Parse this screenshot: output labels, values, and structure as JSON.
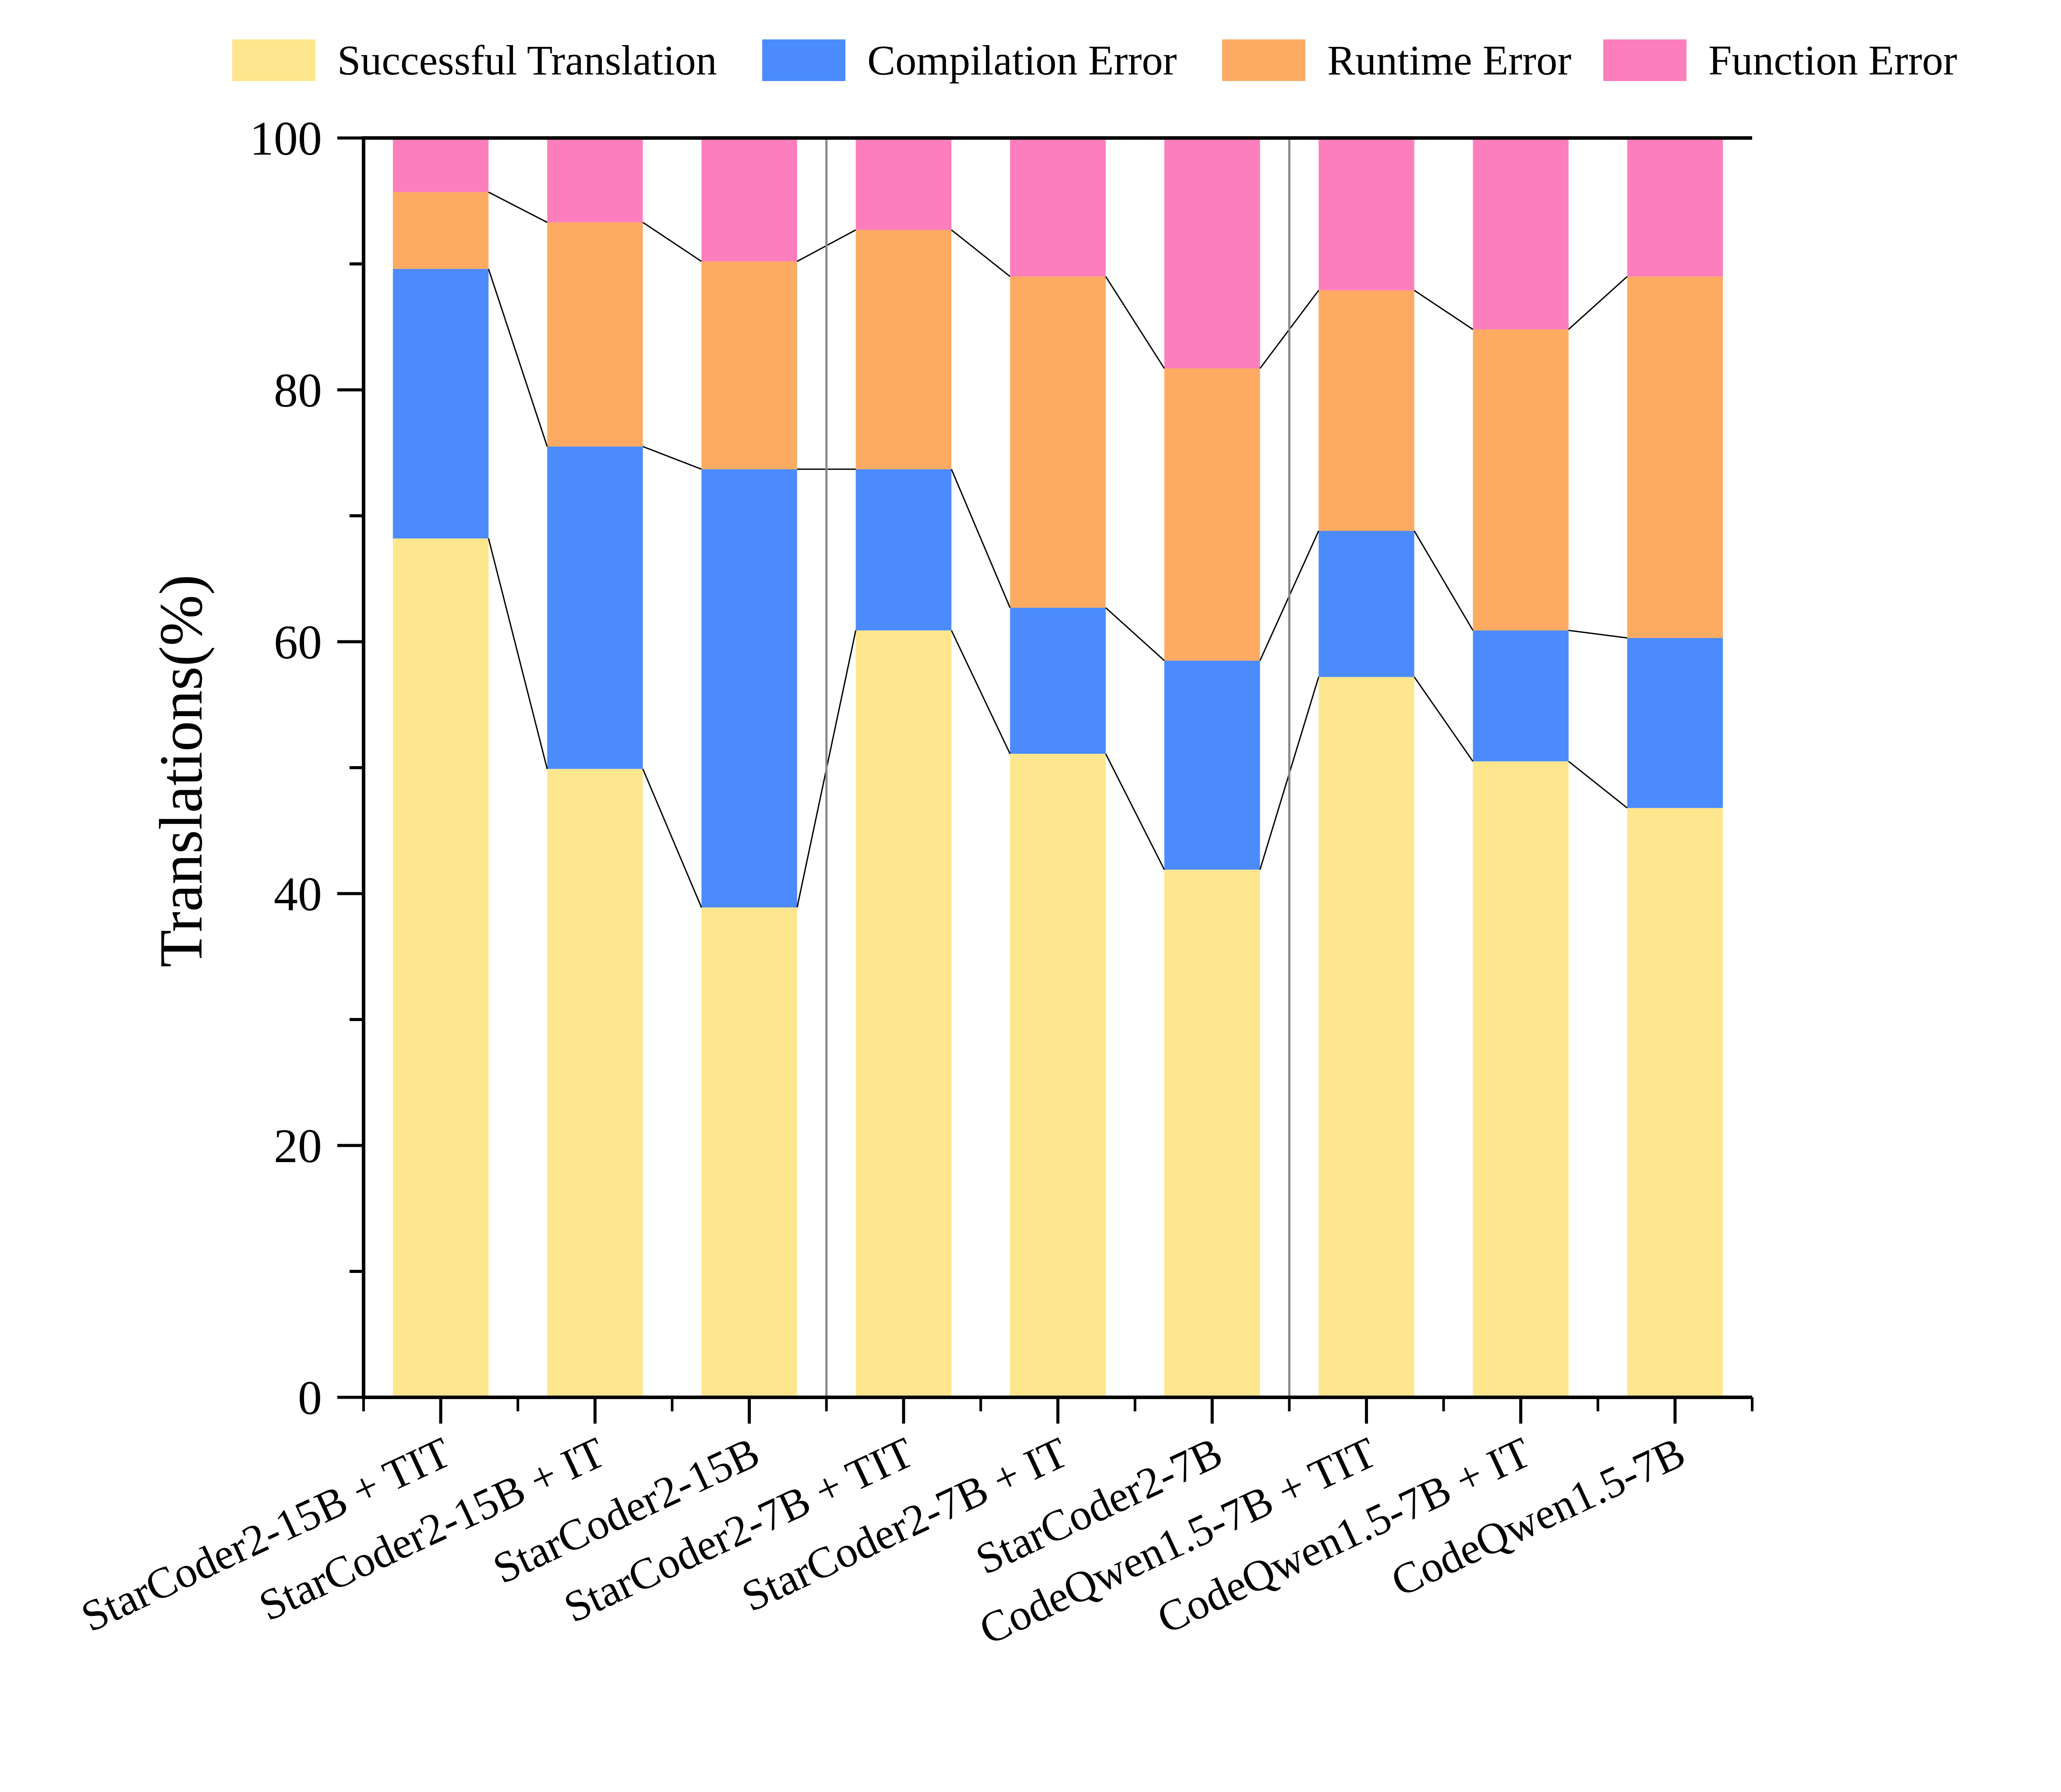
{
  "chart_data": {
    "type": "bar",
    "stacked": true,
    "ylabel": "Translations(%)",
    "xlabel": "",
    "ylim": [
      0,
      100
    ],
    "yticks": [
      "0",
      "20",
      "40",
      "60",
      "80",
      "100"
    ],
    "categories": [
      "StarCoder2-15B + TIT",
      "StarCoder2-15B + IT",
      "StarCoder2-15B",
      "StarCoder2-7B + TIT",
      "StarCoder2-7B + IT",
      "StarCoder2-7B",
      "CodeQwen1.5-7B + TIT",
      "CodeQwen1.5-7B + IT",
      "CodeQwen1.5-7B"
    ],
    "group_separators_after": [
      2,
      5
    ],
    "legend_position": "top",
    "series": [
      {
        "name": "Successful Translation",
        "color": "#FDE68D",
        "values": [
          68.2,
          49.9,
          38.9,
          60.9,
          51.1,
          41.9,
          57.2,
          50.5,
          46.8
        ]
      },
      {
        "name": "Compilation Error",
        "color": "#4B8BFD",
        "values": [
          21.4,
          25.6,
          34.8,
          12.8,
          11.6,
          16.6,
          11.6,
          10.4,
          13.5
        ]
      },
      {
        "name": "Runtime Error",
        "color": "#FDAB62",
        "values": [
          6.1,
          17.8,
          16.5,
          19.0,
          26.3,
          23.2,
          19.1,
          23.9,
          28.7
        ]
      },
      {
        "name": "Function Error",
        "color": "#FD7EBD",
        "values": [
          4.3,
          6.7,
          9.8,
          7.3,
          11.0,
          18.3,
          12.1,
          15.2,
          11.0
        ]
      }
    ]
  }
}
